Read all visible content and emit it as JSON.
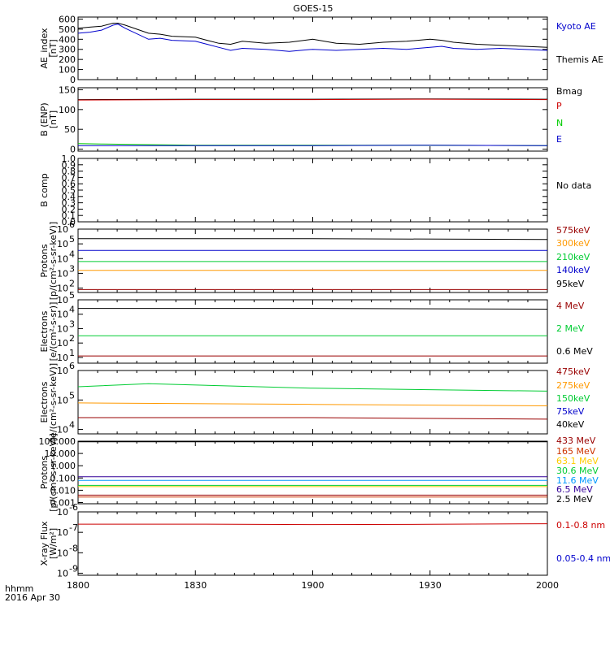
{
  "title": "GOES-15",
  "time_axis": {
    "ticks": [
      "1800",
      "1830",
      "1900",
      "1930",
      "2000"
    ],
    "label_left": "hhmm",
    "date_label": "2016 Apr 30"
  },
  "chart_data": [
    {
      "type": "line",
      "panel": "AE index",
      "ylabel": "AE_index\n[nT]",
      "yticks": [
        "0",
        "100",
        "200",
        "300",
        "400",
        "500",
        "600"
      ],
      "ylim": [
        0,
        620
      ],
      "x_range_hours": [
        18.0,
        20.0
      ],
      "series": [
        {
          "name": "Kyoto AE",
          "color": "#0000cc",
          "x": [
            18.0,
            18.05,
            18.1,
            18.15,
            18.17,
            18.2,
            18.3,
            18.35,
            18.4,
            18.5,
            18.55,
            18.6,
            18.65,
            18.7,
            18.8,
            18.9,
            19.0,
            19.1,
            19.2,
            19.3,
            19.4,
            19.5,
            19.55,
            19.6,
            19.7,
            19.8,
            19.9,
            20.0
          ],
          "y": [
            460,
            470,
            490,
            540,
            550,
            510,
            400,
            410,
            390,
            380,
            350,
            320,
            290,
            310,
            300,
            280,
            300,
            290,
            300,
            310,
            300,
            320,
            330,
            310,
            300,
            310,
            300,
            290
          ]
        },
        {
          "name": "Themis AE",
          "color": "#000000",
          "x": [
            18.0,
            18.05,
            18.1,
            18.15,
            18.17,
            18.2,
            18.3,
            18.35,
            18.4,
            18.5,
            18.55,
            18.6,
            18.65,
            18.7,
            18.8,
            18.9,
            19.0,
            19.1,
            19.2,
            19.3,
            19.4,
            19.5,
            19.55,
            19.6,
            19.7,
            19.8,
            19.9,
            20.0
          ],
          "y": [
            510,
            520,
            530,
            560,
            560,
            540,
            460,
            450,
            430,
            420,
            390,
            360,
            350,
            380,
            360,
            370,
            400,
            360,
            350,
            370,
            380,
            400,
            390,
            370,
            350,
            340,
            330,
            320
          ]
        }
      ]
    },
    {
      "type": "line",
      "panel": "B (ENP)",
      "ylabel": "B (ENP)\n[nT]",
      "yticks": [
        "0",
        "50",
        "100",
        "150"
      ],
      "ylim": [
        -5,
        155
      ],
      "series": [
        {
          "name": "Bmag",
          "color": "#000000",
          "x": [
            18.0,
            18.5,
            19.0,
            19.5,
            20.0
          ],
          "y": [
            125,
            126,
            126,
            127,
            126
          ]
        },
        {
          "name": "P",
          "color": "#cc0000",
          "x": [
            18.0,
            18.5,
            19.0,
            19.5,
            20.0
          ],
          "y": [
            124,
            125,
            125,
            126,
            125
          ]
        },
        {
          "name": "N",
          "color": "#00cc00",
          "x": [
            18.0,
            18.1,
            18.5,
            19.0,
            19.5,
            20.0
          ],
          "y": [
            14,
            13,
            10,
            10,
            10,
            9
          ]
        },
        {
          "name": "E",
          "color": "#0000cc",
          "x": [
            18.0,
            18.5,
            19.0,
            19.5,
            20.0
          ],
          "y": [
            9,
            9,
            9,
            10,
            9
          ]
        }
      ]
    },
    {
      "type": "line",
      "panel": "B comp",
      "ylabel": "B comp",
      "yticks": [
        "0.0",
        "0.1",
        "0.2",
        "0.3",
        "0.4",
        "0.5",
        "0.6",
        "0.7",
        "0.8",
        "0.9",
        "1.0"
      ],
      "ylim": [
        0,
        1
      ],
      "note": "No data",
      "series": []
    },
    {
      "type": "line",
      "panel": "Protons",
      "ylabel": "Protons\n[p/(cm²-s-sr-keV)]",
      "yscale": "log",
      "yticks_exp": [
        2,
        3,
        4,
        5,
        6
      ],
      "ylim_log10": [
        1.7,
        6.0
      ],
      "series": [
        {
          "name": "575keV",
          "color": "#990000",
          "x": [
            18.0,
            19.0,
            20.0
          ],
          "y_log10": [
            1.9,
            1.9,
            1.9
          ]
        },
        {
          "name": "300keV",
          "color": "#ff9900",
          "x": [
            18.0,
            19.0,
            20.0
          ],
          "y_log10": [
            3.2,
            3.2,
            3.2
          ]
        },
        {
          "name": "210keV",
          "color": "#00cc33",
          "x": [
            18.0,
            19.0,
            20.0
          ],
          "y_log10": [
            3.8,
            3.8,
            3.8
          ]
        },
        {
          "name": "140keV",
          "color": "#0000cc",
          "x": [
            18.0,
            19.0,
            20.0
          ],
          "y_log10": [
            4.55,
            4.55,
            4.55
          ]
        },
        {
          "name": "95keV",
          "color": "#000000",
          "x": [
            18.0,
            19.0,
            20.0
          ],
          "y_log10": [
            5.35,
            5.35,
            5.3
          ]
        }
      ]
    },
    {
      "type": "line",
      "panel": "Electrons (GEO)",
      "ylabel": "Electrons\n[e/(cm²-s-sr)]",
      "yscale": "log",
      "yticks_exp": [
        1,
        2,
        3,
        4,
        5
      ],
      "ylim_log10": [
        0.6,
        5.0
      ],
      "series": [
        {
          "name": "4 MeV",
          "color": "#990000",
          "x": [
            18.0,
            19.0,
            20.0
          ],
          "y_log10": [
            1.1,
            1.1,
            1.1
          ]
        },
        {
          "name": "2 MeV",
          "color": "#00cc33",
          "x": [
            18.0,
            19.0,
            20.0
          ],
          "y_log10": [
            2.5,
            2.5,
            2.5
          ]
        },
        {
          "name": "0.6 MeV",
          "color": "#000000",
          "x": [
            18.0,
            19.0,
            20.0
          ],
          "y_log10": [
            4.4,
            4.4,
            4.35
          ]
        }
      ]
    },
    {
      "type": "line",
      "panel": "Electrons (MAGED)",
      "ylabel": "Electrons\n[e/(cm²-s-sr-keV)]",
      "yscale": "log",
      "yticks_exp": [
        4,
        5,
        6
      ],
      "ylim_log10": [
        3.85,
        6.0
      ],
      "series": [
        {
          "name": "475keV",
          "color": "#990000",
          "x": [
            18.0,
            19.0,
            20.0
          ],
          "y_log10": [
            4.4,
            4.4,
            4.35
          ]
        },
        {
          "name": "275keV",
          "color": "#ff9900",
          "x": [
            18.0,
            19.0,
            20.0
          ],
          "y_log10": [
            4.9,
            4.85,
            4.8
          ]
        },
        {
          "name": "150keV",
          "color": "#00cc33",
          "x": [
            18.0,
            18.3,
            19.0,
            20.0
          ],
          "y_log10": [
            5.45,
            5.55,
            5.4,
            5.3
          ]
        },
        {
          "name": "75keV",
          "color": "#0000cc",
          "x": [],
          "y_log10": []
        },
        {
          "name": "40keV",
          "color": "#000000",
          "x": [],
          "y_log10": []
        }
      ]
    },
    {
      "type": "line",
      "panel": "Protons (EPEAD/HEPAD)",
      "ylabel": "Protons\n[p/(cm²-s-sr-keV)]",
      "yscale": "log",
      "yticks": [
        "0.001",
        "0.010",
        "0.100",
        "1.000",
        "10.000",
        "100.000"
      ],
      "ylim_log10": [
        -3.1,
        2.0
      ],
      "series": [
        {
          "name": "433 MeV",
          "color": "#990000",
          "x": [
            18.0,
            20.0
          ],
          "y_log10": [
            -2.4,
            -2.4
          ]
        },
        {
          "name": "165 MeV",
          "color": "#cc3300",
          "x": [
            18.0,
            20.0
          ],
          "y_log10": [
            -2.55,
            -2.55
          ]
        },
        {
          "name": "63.1 MeV",
          "color": "#ffcc00",
          "x": [
            18.0,
            20.0
          ],
          "y_log10": [
            -1.7,
            -1.7
          ]
        },
        {
          "name": "30.6 MeV",
          "color": "#00cc33",
          "x": [
            18.0,
            20.0
          ],
          "y_log10": [
            -1.6,
            -1.6
          ]
        },
        {
          "name": "11.6 MeV",
          "color": "#0099ff",
          "x": [
            18.0,
            20.0
          ],
          "y_log10": [
            -1.2,
            -1.2
          ]
        },
        {
          "name": "6.5 MeV",
          "color": "#330099",
          "x": [
            18.0,
            20.0
          ],
          "y_log10": [
            -0.9,
            -0.9
          ]
        },
        {
          "name": "2.5 MeV",
          "color": "#000000",
          "x": [
            18.0,
            20.0
          ],
          "y_log10": [
            1.95,
            1.95
          ]
        }
      ]
    },
    {
      "type": "line",
      "panel": "X-ray Flux",
      "ylabel": "X-ray Flux\n[W/m²]",
      "yscale": "log",
      "yticks_exp": [
        -9,
        -8,
        -7,
        -6
      ],
      "ylim_log10": [
        -9.1,
        -6.0
      ],
      "series": [
        {
          "name": "0.1-0.8 nm",
          "color": "#cc0000",
          "x": [
            18.0,
            18.5,
            19.0,
            19.5,
            20.0
          ],
          "y_log10": [
            -6.6,
            -6.6,
            -6.62,
            -6.61,
            -6.58
          ]
        },
        {
          "name": "0.05-0.4 nm",
          "color": "#0000cc",
          "x": [],
          "y_log10": []
        }
      ]
    }
  ]
}
